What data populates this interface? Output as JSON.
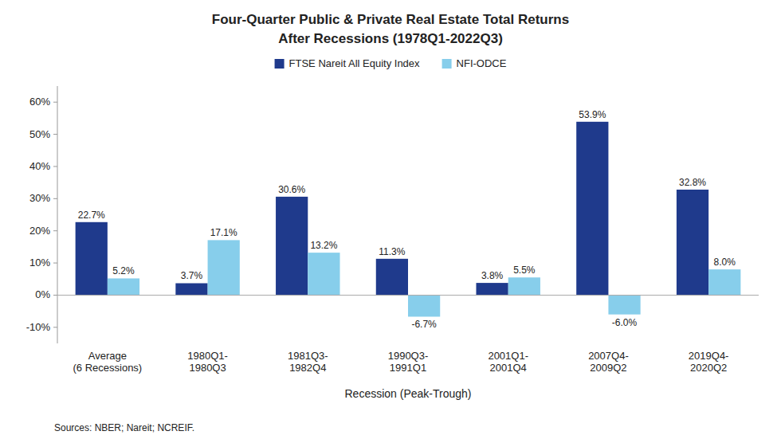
{
  "chart_data": {
    "type": "bar",
    "title": "Four-Quarter Public & Private Real Estate Total Returns",
    "subtitle": "After Recessions (1978Q1-2022Q3)",
    "xlabel": "Recession (Peak-Trough)",
    "annotations": [
      "Sources: NBER; Nareit; NCREIF."
    ],
    "categories": [
      "Average\n(6 Recessions)",
      "1980Q1-\n1980Q3",
      "1981Q3-\n1982Q4",
      "1990Q3-\n1991Q1",
      "2001Q1-\n2001Q4",
      "2007Q4-\n2009Q2",
      "2019Q4-\n2020Q2"
    ],
    "series": [
      {
        "name": "FTSE Nareit All Equity Index",
        "color": "#1F3A8C",
        "values": [
          22.7,
          3.7,
          30.6,
          11.3,
          3.8,
          53.9,
          32.8
        ],
        "value_labels": [
          "22.7%",
          "3.7%",
          "30.6%",
          "11.3%",
          "3.8%",
          "53.9%",
          "32.8%"
        ]
      },
      {
        "name": "NFI-ODCE",
        "color": "#87CEEB",
        "values": [
          5.2,
          17.1,
          13.2,
          -6.7,
          5.5,
          -6.0,
          8.0
        ],
        "value_labels": [
          "5.2%",
          "17.1%",
          "13.2%",
          "-6.7%",
          "5.5%",
          "-6.0%",
          "8.0%"
        ]
      }
    ],
    "ylim": [
      -15,
      65
    ],
    "yticks": [
      {
        "value": -10,
        "label": "-10%"
      },
      {
        "value": 0,
        "label": "0%"
      },
      {
        "value": 10,
        "label": "10%"
      },
      {
        "value": 20,
        "label": "20%"
      },
      {
        "value": 30,
        "label": "30%"
      },
      {
        "value": 40,
        "label": "40%"
      },
      {
        "value": 50,
        "label": "50%"
      },
      {
        "value": 60,
        "label": "60%"
      }
    ],
    "data_labels": true,
    "legend": "top",
    "grid": false
  }
}
